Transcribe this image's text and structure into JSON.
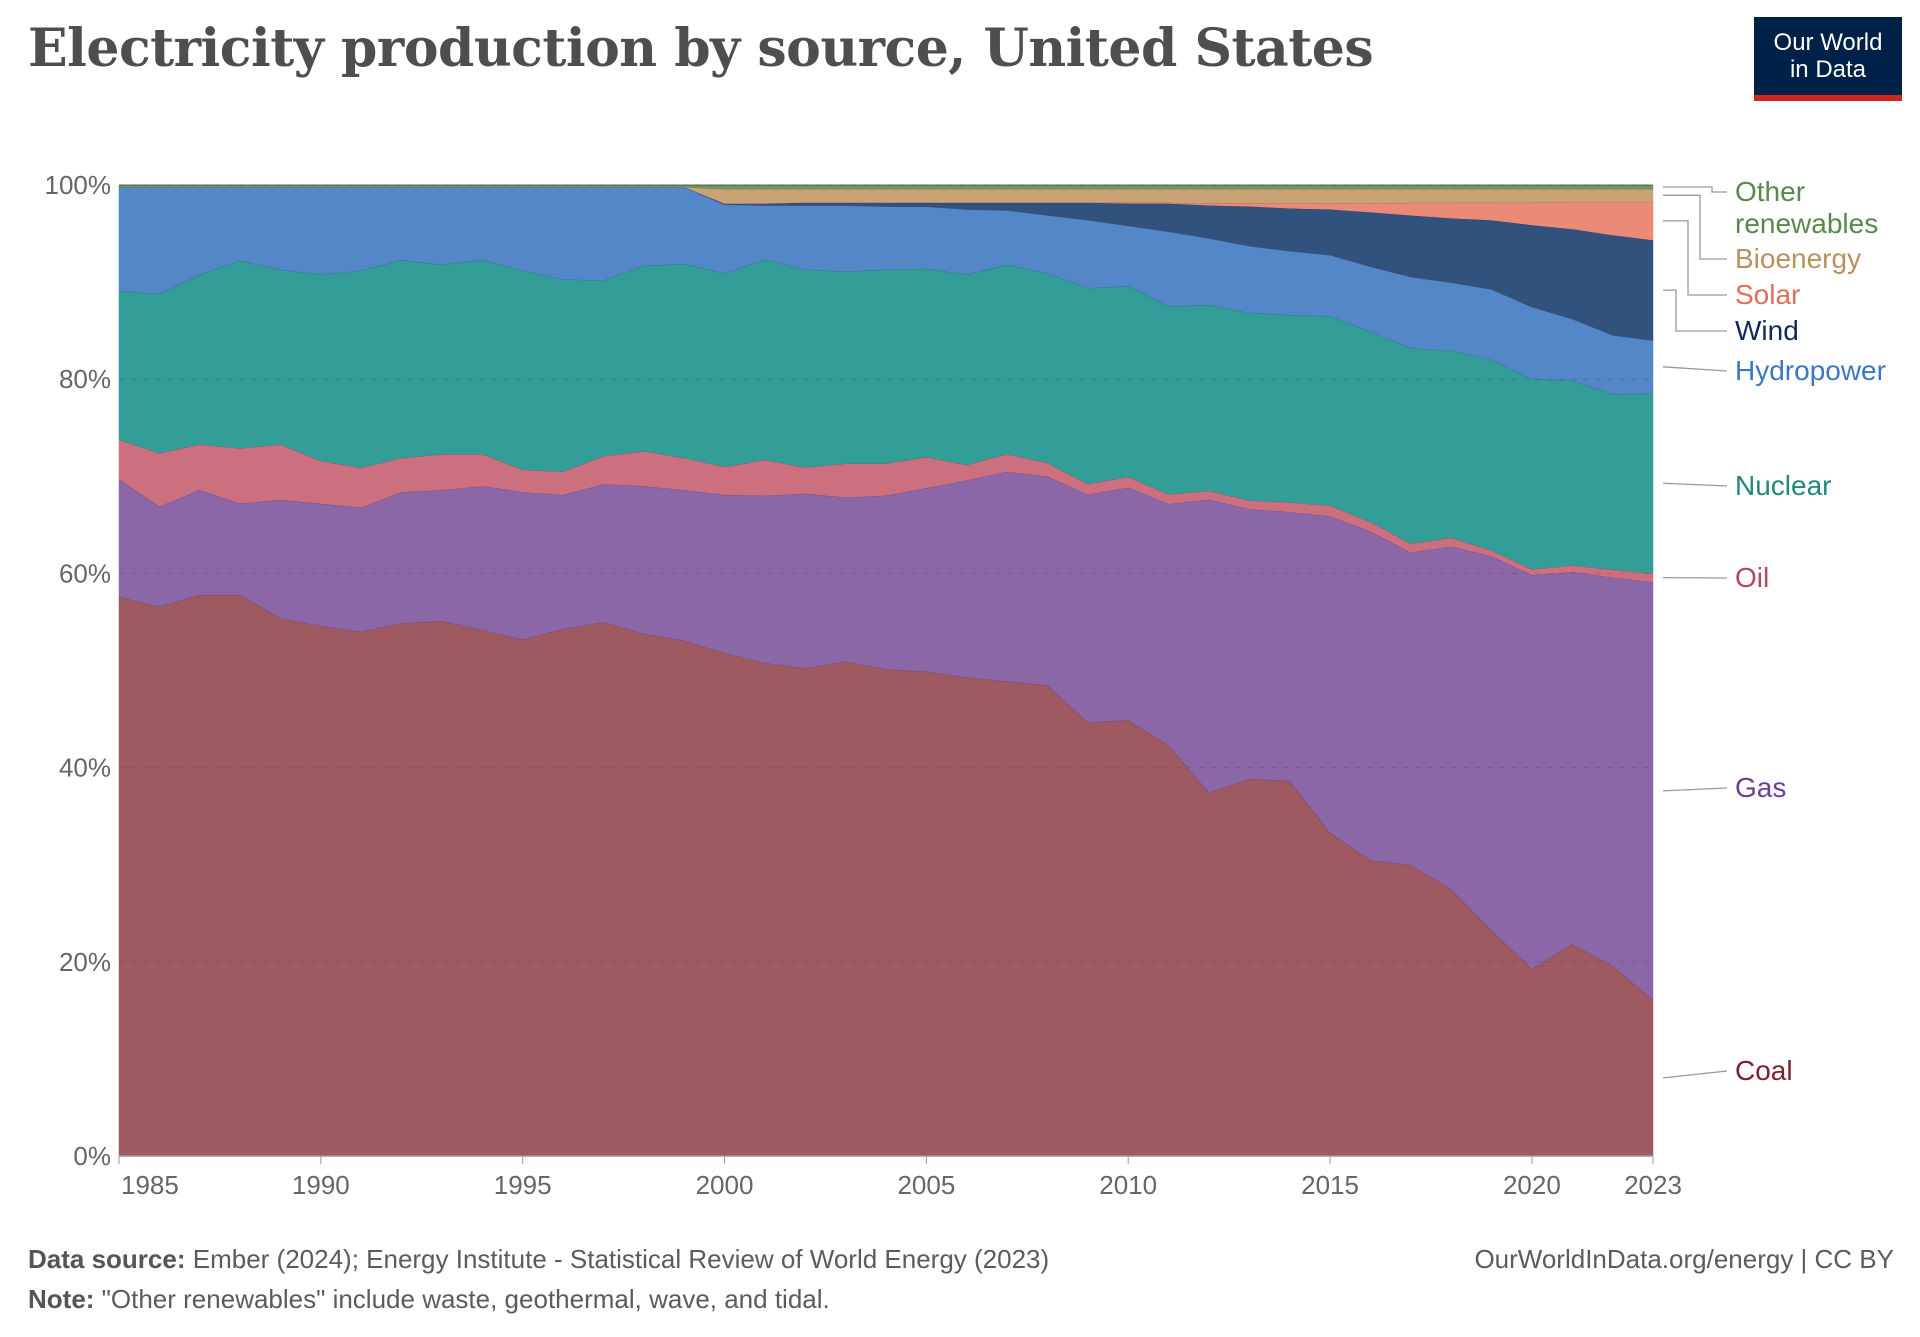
{
  "title": "Electricity production by source, United States",
  "logo": {
    "line1": "Our World",
    "line2": "in Data",
    "bg": "#002147",
    "accent": "#ce261e"
  },
  "footer": {
    "source_label": "Data source:",
    "source_text": "Ember (2024); Energy Institute - Statistical Review of World Energy (2023)",
    "note_label": "Note:",
    "note_text": "\"Other renewables\" include waste, geothermal, wave, and tidal.",
    "credit": "OurWorldInData.org/energy | CC BY"
  },
  "chart_data": {
    "type": "area",
    "stacked": "relative",
    "title": "Electricity production by source, United States",
    "ylim": [
      0,
      100
    ],
    "yticks": [
      "0%",
      "20%",
      "40%",
      "60%",
      "80%",
      "100%"
    ],
    "ytick_values": [
      0,
      20,
      40,
      60,
      80,
      100
    ],
    "xticks": [
      "1985",
      "1990",
      "1995",
      "2000",
      "2005",
      "2010",
      "2015",
      "2020",
      "2023"
    ],
    "xtick_values": [
      1985,
      1990,
      1995,
      2000,
      2005,
      2010,
      2015,
      2020,
      2023
    ],
    "grid": "horizontal dashed",
    "legend": "right (inline labels)",
    "x": [
      1985,
      1986,
      1987,
      1988,
      1989,
      1990,
      1991,
      1992,
      1993,
      1994,
      1995,
      1996,
      1997,
      1998,
      1999,
      2000,
      2001,
      2002,
      2003,
      2004,
      2005,
      2006,
      2007,
      2008,
      2009,
      2010,
      2011,
      2012,
      2013,
      2014,
      2015,
      2016,
      2017,
      2018,
      2019,
      2020,
      2021,
      2022,
      2023
    ],
    "series": [
      {
        "name": "Coal",
        "fill": "#9e5a60",
        "label_color": "#7c2030",
        "values": [
          57.6,
          56.6,
          57.8,
          57.8,
          55.4,
          54.6,
          54.0,
          54.9,
          55.1,
          54.2,
          53.2,
          54.3,
          55.0,
          53.8,
          53.1,
          51.8,
          51.0,
          50.3,
          51.0,
          50.2,
          49.9,
          49.3,
          48.9,
          48.5,
          44.7,
          45.0,
          42.4,
          37.6,
          39.0,
          38.7,
          33.3,
          30.5,
          29.8,
          27.4,
          23.2,
          19.2,
          21.7,
          19.4,
          15.9
        ]
      },
      {
        "name": "Gas",
        "fill": "#8b67a8",
        "label_color": "#6d3e91",
        "values": [
          12.1,
          10.3,
          10.8,
          9.4,
          12.2,
          12.6,
          12.8,
          13.5,
          13.5,
          14.8,
          15.2,
          13.8,
          14.2,
          15.2,
          15.5,
          16.3,
          17.3,
          18.0,
          16.9,
          17.9,
          18.9,
          20.3,
          21.6,
          21.5,
          23.5,
          24.0,
          24.9,
          30.3,
          27.9,
          27.7,
          32.6,
          33.9,
          32.0,
          35.2,
          38.4,
          40.4,
          38.1,
          39.6,
          42.5
        ]
      },
      {
        "name": "Oil",
        "fill": "#cc7080",
        "label_color": "#b5475a",
        "values": [
          4.1,
          5.5,
          4.7,
          5.7,
          5.7,
          4.4,
          4.1,
          3.5,
          3.7,
          3.3,
          2.3,
          2.4,
          2.9,
          3.6,
          3.3,
          2.9,
          3.7,
          2.7,
          3.5,
          3.3,
          3.2,
          1.6,
          1.8,
          1.4,
          1.1,
          1.1,
          1.0,
          0.9,
          0.9,
          1.0,
          1.1,
          1.0,
          0.9,
          0.9,
          0.6,
          0.6,
          0.7,
          0.8,
          0.9
        ]
      },
      {
        "name": "Nuclear",
        "fill": "#339e98",
        "label_color": "#20897a",
        "values": [
          15.3,
          16.4,
          17.5,
          19.3,
          18.0,
          19.2,
          20.3,
          20.4,
          19.5,
          20.0,
          20.5,
          19.8,
          18.1,
          19.1,
          20.0,
          19.9,
          20.7,
          20.4,
          19.8,
          20.0,
          19.4,
          19.6,
          19.5,
          19.5,
          20.2,
          19.7,
          19.4,
          19.2,
          19.4,
          19.3,
          19.5,
          19.6,
          20.0,
          19.2,
          19.6,
          19.5,
          18.9,
          17.9,
          18.3
        ]
      },
      {
        "name": "Hydropower",
        "fill": "#5387c8",
        "label_color": "#3a77c5",
        "values": [
          10.7,
          11.0,
          9.0,
          7.6,
          8.5,
          9.0,
          8.6,
          7.5,
          8.0,
          7.5,
          8.6,
          9.5,
          9.6,
          8.1,
          7.9,
          7.1,
          5.6,
          6.6,
          6.8,
          6.5,
          6.4,
          6.7,
          5.6,
          6.0,
          7.0,
          6.2,
          7.7,
          6.9,
          6.9,
          6.6,
          6.3,
          6.7,
          7.3,
          7.0,
          7.2,
          7.4,
          6.3,
          6.0,
          5.4
        ]
      },
      {
        "name": "Wind",
        "fill": "#31527c",
        "label_color": "#0d2a58",
        "values": [
          0,
          0,
          0,
          0,
          0,
          0,
          0,
          0,
          0,
          0,
          0,
          0,
          0,
          0,
          0,
          0.1,
          0.2,
          0.3,
          0.3,
          0.4,
          0.4,
          0.7,
          0.8,
          1.3,
          1.8,
          2.3,
          2.9,
          3.4,
          4.1,
          4.4,
          4.7,
          5.6,
          6.3,
          6.6,
          7.1,
          8.4,
          9.2,
          10.2,
          10.2
        ]
      },
      {
        "name": "Solar",
        "fill": "#ec8a78",
        "label_color": "#e06e5a",
        "values": [
          0,
          0,
          0,
          0,
          0,
          0,
          0,
          0,
          0,
          0,
          0,
          0,
          0,
          0,
          0,
          0,
          0,
          0,
          0,
          0,
          0,
          0,
          0,
          0,
          0,
          0.1,
          0.1,
          0.2,
          0.3,
          0.5,
          0.6,
          0.9,
          1.3,
          1.6,
          1.8,
          2.3,
          2.8,
          3.4,
          3.9
        ]
      },
      {
        "name": "Bioenergy",
        "fill": "#c9a373",
        "label_color": "#b8925d",
        "values": [
          0,
          0,
          0,
          0,
          0,
          0,
          0,
          0,
          0,
          0,
          0,
          0,
          0,
          0,
          0,
          1.5,
          1.5,
          1.4,
          1.4,
          1.4,
          1.4,
          1.4,
          1.4,
          1.4,
          1.4,
          1.4,
          1.4,
          1.5,
          1.5,
          1.5,
          1.5,
          1.5,
          1.4,
          1.4,
          1.4,
          1.4,
          1.3,
          1.3,
          1.3
        ]
      },
      {
        "name": "Other renewables",
        "fill": "#6b9a5a",
        "label_color": "#58894a",
        "values": [
          0.2,
          0.2,
          0.2,
          0.2,
          0.2,
          0.2,
          0.2,
          0.2,
          0.2,
          0.2,
          0.2,
          0.2,
          0.2,
          0.2,
          0.2,
          0.4,
          0.4,
          0.4,
          0.4,
          0.4,
          0.4,
          0.4,
          0.4,
          0.4,
          0.4,
          0.4,
          0.4,
          0.4,
          0.4,
          0.4,
          0.4,
          0.4,
          0.4,
          0.4,
          0.4,
          0.4,
          0.4,
          0.4,
          0.4
        ]
      }
    ]
  }
}
